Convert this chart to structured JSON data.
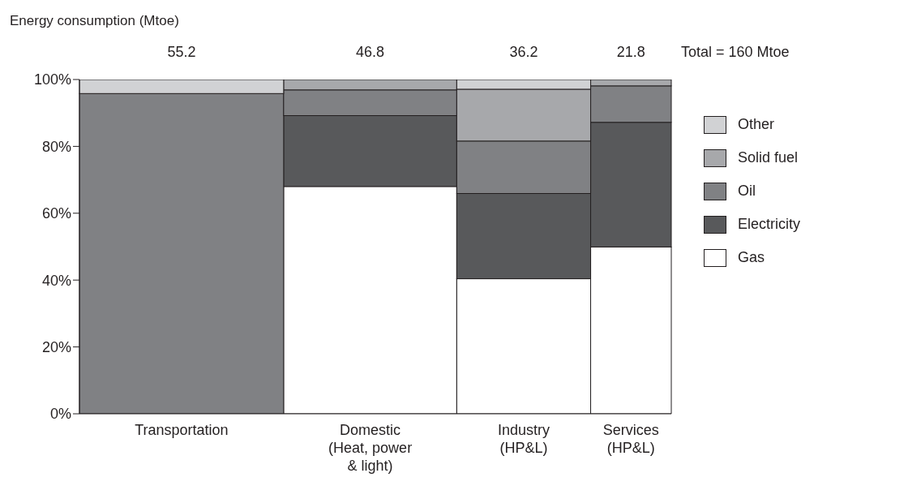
{
  "chart_data": {
    "type": "bar",
    "stacked": true,
    "ylabel": "Energy consumption (Mtoe)",
    "categories": [
      "Transportation",
      "Domestic\n(Heat, power\n& light)",
      "Industry\n(HP&L)",
      "Services\n(HP&L)"
    ],
    "annotations": [
      {
        "text": "55.2",
        "x": "Transportation",
        "y": 100
      },
      {
        "text": "46.8",
        "x": "Domestic\n(Heat, power\n& light)",
        "y": 100
      },
      {
        "text": "36.2",
        "x": "Industry\n(HP&L)",
        "y": 100
      },
      {
        "text": "21.8",
        "x": "Services\n(HP&L)",
        "y": 100
      },
      "Total = 160 Mtoe"
    ],
    "series": [
      {
        "name": "Gas",
        "color": "#ffffff",
        "values": [
          null,
          68.0,
          40.4,
          49.9
        ]
      },
      {
        "name": "Electricity",
        "color": "#58595b",
        "values": [
          null,
          21.2,
          25.5,
          37.3
        ]
      },
      {
        "name": "Oil",
        "color": "#808184",
        "values": [
          95.8,
          7.7,
          15.7,
          10.9
        ]
      },
      {
        "name": "Solid fuel",
        "color": "#a7a8ab",
        "values": [
          null,
          3.1,
          15.5,
          1.9
        ]
      },
      {
        "name": "Other",
        "color": "#d1d2d4",
        "values": [
          4.2,
          null,
          2.9,
          null
        ]
      }
    ],
    "ylim": [
      0,
      100
    ],
    "yticks": [
      {
        "value": 0,
        "label": "0%"
      },
      {
        "value": 20,
        "label": "20%"
      },
      {
        "value": 40,
        "label": "40%"
      },
      {
        "value": 60,
        "label": "60%"
      },
      {
        "value": 80,
        "label": "80%"
      },
      {
        "value": 100,
        "label": "100%"
      }
    ],
    "grid": false,
    "legend": "right"
  }
}
